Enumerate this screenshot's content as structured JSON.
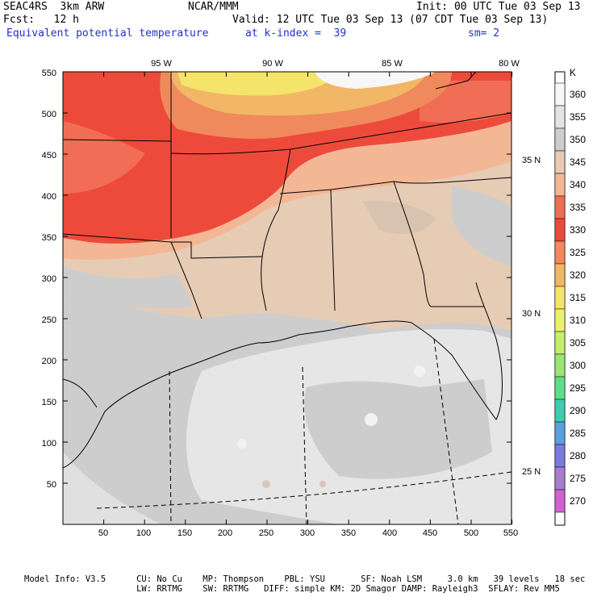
{
  "header": {
    "model": "SEAC4RS  3km ARW",
    "center": "NCAR/MMM",
    "init": "Init: 00 UTC Tue 03 Sep 13",
    "fcst": "Fcst:   12 h",
    "valid": "Valid: 12 UTC Tue 03 Sep 13 (07 CDT Tue 03 Sep 13)",
    "field": "Equivalent potential temperature",
    "level": "at k-index =  39",
    "smoothing": "sm= 2"
  },
  "map": {
    "x_ticks": [
      "50",
      "100",
      "150",
      "200",
      "250",
      "300",
      "350",
      "400",
      "450",
      "500",
      "550"
    ],
    "y_ticks": [
      "50",
      "100",
      "150",
      "200",
      "250",
      "300",
      "350",
      "400",
      "450",
      "500",
      "550"
    ],
    "lon_labels": [
      "95 W",
      "90 W",
      "85 W",
      "80 W"
    ],
    "lat_labels": [
      "35 N",
      "30 N",
      "25 N"
    ]
  },
  "colorbar": {
    "unit": "K",
    "levels": [
      "360",
      "355",
      "350",
      "345",
      "340",
      "335",
      "330",
      "325",
      "320",
      "315",
      "310",
      "305",
      "300",
      "295",
      "290",
      "285",
      "280",
      "275",
      "270"
    ],
    "colors": [
      "#f7f7f7",
      "#e3e3e3",
      "#cdcdcd",
      "#e6cbb5",
      "#f3b796",
      "#f26d55",
      "#ee4a3c",
      "#f08a5c",
      "#f2b766",
      "#f5e46a",
      "#e9f26a",
      "#c4ee6e",
      "#97e577",
      "#63dc8a",
      "#3fcdb0",
      "#5d9fe0",
      "#7b7bdc",
      "#a77dd0",
      "#d160d2"
    ]
  },
  "footer": {
    "line1": "Model Info: V3.5      CU: No Cu    MP: Thompson    PBL: YSU       SF: Noah LSM     3.0 km   39 levels   18 sec",
    "line2": "                      LW: RRTMG    SW: RRTMG   DIFF: simple KM: 2D Smagor DAMP: Rayleigh3  SFLAY: Rev MM5"
  }
}
